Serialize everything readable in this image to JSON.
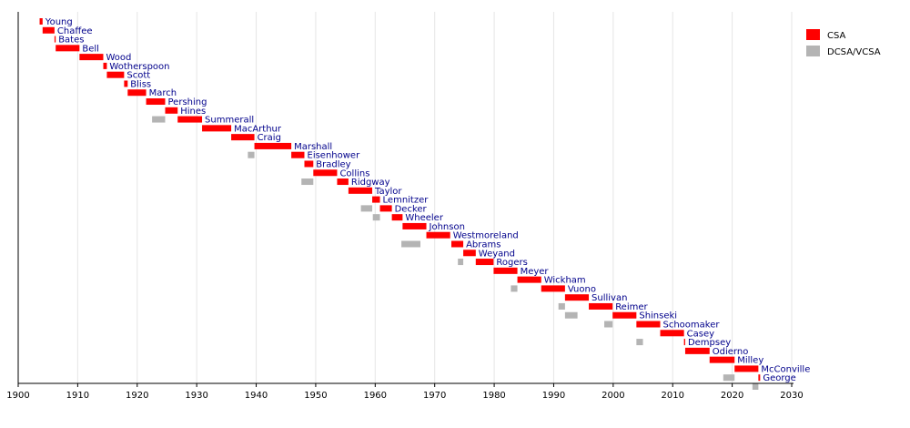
{
  "chart_data": {
    "type": "bar",
    "subtype": "timeline",
    "title": "",
    "xlabel": "",
    "ylabel": "",
    "xlim": [
      1900,
      2030
    ],
    "x_ticks": [
      1900,
      1910,
      1920,
      1930,
      1940,
      1950,
      1960,
      1970,
      1980,
      1990,
      2000,
      2010,
      2020,
      2030
    ],
    "grid": "vertical",
    "legend_position": "top-right",
    "legend": [
      {
        "key": "csa",
        "label": "CSA",
        "color": "#ff0000"
      },
      {
        "key": "vcsa",
        "label": "DCSA/VCSA",
        "color": "#b4b4b4"
      }
    ],
    "rows": [
      {
        "name": "Young",
        "csa": [
          1903.6,
          1904.1
        ],
        "vcsa": null
      },
      {
        "name": "Chaffee",
        "csa": [
          1904.1,
          1906.1
        ],
        "vcsa": null
      },
      {
        "name": "Bates",
        "csa": [
          1906.1,
          1906.3
        ],
        "vcsa": null
      },
      {
        "name": "Bell",
        "csa": [
          1906.3,
          1910.3
        ],
        "vcsa": null
      },
      {
        "name": "Wood",
        "csa": [
          1910.3,
          1914.3
        ],
        "vcsa": null
      },
      {
        "name": "Wotherspoon",
        "csa": [
          1914.3,
          1914.9
        ],
        "vcsa": null
      },
      {
        "name": "Scott",
        "csa": [
          1914.9,
          1917.8
        ],
        "vcsa": null
      },
      {
        "name": "Bliss",
        "csa": [
          1917.8,
          1918.4
        ],
        "vcsa": null
      },
      {
        "name": "March",
        "csa": [
          1918.4,
          1921.5
        ],
        "vcsa": null
      },
      {
        "name": "Pershing",
        "csa": [
          1921.5,
          1924.7
        ],
        "vcsa": null
      },
      {
        "name": "Hines",
        "csa": [
          1924.7,
          1926.8
        ],
        "vcsa": [
          1922.5,
          1924.7
        ]
      },
      {
        "name": "Summerall",
        "csa": [
          1926.8,
          1930.9
        ],
        "vcsa": null
      },
      {
        "name": "MacArthur",
        "csa": [
          1930.9,
          1935.8
        ],
        "vcsa": null
      },
      {
        "name": "Craig",
        "csa": [
          1935.8,
          1939.7
        ],
        "vcsa": null
      },
      {
        "name": "Marshall",
        "csa": [
          1939.7,
          1945.9
        ],
        "vcsa": [
          1938.6,
          1939.7
        ]
      },
      {
        "name": "Eisenhower",
        "csa": [
          1945.9,
          1948.1
        ],
        "vcsa": null
      },
      {
        "name": "Bradley",
        "csa": [
          1948.1,
          1949.6
        ],
        "vcsa": null
      },
      {
        "name": "Collins",
        "csa": [
          1949.6,
          1953.6
        ],
        "vcsa": [
          1947.6,
          1949.6
        ]
      },
      {
        "name": "Ridgway",
        "csa": [
          1953.6,
          1955.5
        ],
        "vcsa": null
      },
      {
        "name": "Taylor",
        "csa": [
          1955.5,
          1959.5
        ],
        "vcsa": null
      },
      {
        "name": "Lemnitzer",
        "csa": [
          1959.5,
          1960.8
        ],
        "vcsa": [
          1957.6,
          1959.5
        ]
      },
      {
        "name": "Decker",
        "csa": [
          1960.8,
          1962.8
        ],
        "vcsa": [
          1959.6,
          1960.8
        ]
      },
      {
        "name": "Wheeler",
        "csa": [
          1962.8,
          1964.6
        ],
        "vcsa": null
      },
      {
        "name": "Johnson",
        "csa": [
          1964.6,
          1968.6
        ],
        "vcsa": null
      },
      {
        "name": "Westmoreland",
        "csa": [
          1968.6,
          1972.6
        ],
        "vcsa": [
          1964.4,
          1967.6
        ]
      },
      {
        "name": "Abrams",
        "csa": [
          1972.8,
          1974.8
        ],
        "vcsa": null
      },
      {
        "name": "Weyand",
        "csa": [
          1974.8,
          1976.9
        ],
        "vcsa": [
          1973.9,
          1974.8
        ]
      },
      {
        "name": "Rogers",
        "csa": [
          1976.9,
          1979.9
        ],
        "vcsa": null
      },
      {
        "name": "Meyer",
        "csa": [
          1979.9,
          1983.9
        ],
        "vcsa": null
      },
      {
        "name": "Wickham",
        "csa": [
          1983.9,
          1987.9
        ],
        "vcsa": [
          1982.8,
          1983.9
        ]
      },
      {
        "name": "Vuono",
        "csa": [
          1987.9,
          1991.9
        ],
        "vcsa": null
      },
      {
        "name": "Sullivan",
        "csa": [
          1991.9,
          1995.9
        ],
        "vcsa": [
          1990.8,
          1991.9
        ]
      },
      {
        "name": "Reimer",
        "csa": [
          1995.9,
          1999.9
        ],
        "vcsa": [
          1991.9,
          1994.0
        ]
      },
      {
        "name": "Shinseki",
        "csa": [
          1999.9,
          2003.9
        ],
        "vcsa": [
          1998.5,
          1999.9
        ]
      },
      {
        "name": "Schoomaker",
        "csa": [
          2003.9,
          2007.9
        ],
        "vcsa": null
      },
      {
        "name": "Casey",
        "csa": [
          2007.9,
          2011.9
        ],
        "vcsa": [
          2003.9,
          2005.0
        ]
      },
      {
        "name": "Dempsey",
        "csa": [
          2011.9,
          2012.1
        ],
        "vcsa": null
      },
      {
        "name": "Odierno",
        "csa": [
          2012.1,
          2016.2
        ],
        "vcsa": null
      },
      {
        "name": "Milley",
        "csa": [
          2016.2,
          2020.4
        ],
        "vcsa": null
      },
      {
        "name": "McConville",
        "csa": [
          2020.4,
          2024.4
        ],
        "vcsa": [
          2018.5,
          2020.4
        ]
      },
      {
        "name": "George",
        "csa": [
          2024.4,
          2024.7
        ],
        "vcsa": [
          2023.4,
          2024.4
        ]
      }
    ]
  }
}
